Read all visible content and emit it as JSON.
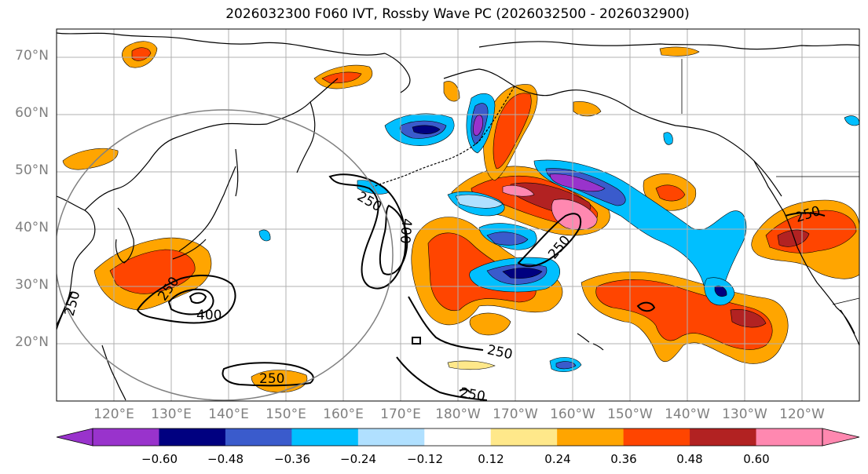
{
  "title": "2026032300 F060 IVT, Rossby Wave PC (2026032500 - 2026032900)",
  "map": {
    "projection": "PlateCarree",
    "lon_range": [
      110,
      250
    ],
    "lat_range": [
      10,
      75
    ],
    "lat_labels": [
      "70°N",
      "60°N",
      "50°N",
      "40°N",
      "30°N",
      "20°N"
    ],
    "lat_values": [
      70,
      60,
      50,
      40,
      30,
      20
    ],
    "lon_labels": [
      "120°E",
      "130°E",
      "140°E",
      "150°E",
      "160°E",
      "170°E",
      "180°W",
      "170°W",
      "160°W",
      "150°W",
      "140°W",
      "130°W",
      "120°W"
    ],
    "lon_values": [
      120,
      130,
      140,
      150,
      160,
      170,
      180,
      190,
      200,
      210,
      220,
      230,
      240
    ],
    "ivt_contour_labels": [
      "250",
      "250",
      "400",
      "250",
      "250",
      "250",
      "250",
      "400",
      "250",
      "250"
    ],
    "ivt_contour_levels": [
      250,
      400
    ]
  },
  "colorbar": {
    "ticks": [
      "−0.60",
      "−0.48",
      "−0.36",
      "−0.24",
      "−0.12",
      "0.12",
      "0.24",
      "0.36",
      "0.48",
      "0.60"
    ],
    "colors": [
      "#9933cc",
      "#000080",
      "#3a5bcc",
      "#00bfff",
      "#b0e0ff",
      "#ffffff",
      "#ffe88a",
      "#ffa500",
      "#ff4500",
      "#b22222",
      "#ff88b0"
    ]
  }
}
